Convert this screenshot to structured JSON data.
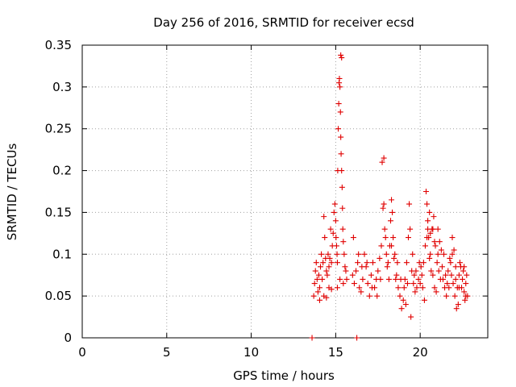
{
  "chart_data": {
    "type": "scatter",
    "title": "Day 256 of 2016, SRMTID for receiver ecsd",
    "xlabel": "GPS time / hours",
    "ylabel": "SRMTID / TECUs",
    "xlim": [
      0,
      24
    ],
    "ylim": [
      0,
      0.35
    ],
    "x_ticks": [
      0,
      5,
      10,
      15,
      20
    ],
    "x_tick_labels": [
      "0",
      "5",
      "10",
      "15",
      "20"
    ],
    "y_ticks": [
      0,
      0.05,
      0.1,
      0.15,
      0.2,
      0.25,
      0.3,
      0.35
    ],
    "y_tick_labels": [
      "0",
      "0.05",
      "0.1",
      "0.15",
      "0.2",
      "0.25",
      "0.3",
      "0.35"
    ],
    "grid": true,
    "marker": "plus",
    "color": "#e00000",
    "series": [
      {
        "name": "SRMTID",
        "points": [
          [
            13.6,
            0.0
          ],
          [
            16.25,
            0.0
          ],
          [
            13.7,
            0.05
          ],
          [
            13.75,
            0.065
          ],
          [
            13.8,
            0.08
          ],
          [
            13.85,
            0.09
          ],
          [
            13.9,
            0.07
          ],
          [
            13.95,
            0.055
          ],
          [
            14.0,
            0.075
          ],
          [
            14.05,
            0.06
          ],
          [
            14.1,
            0.085
          ],
          [
            14.15,
            0.1
          ],
          [
            14.2,
            0.07
          ],
          [
            14.25,
            0.09
          ],
          [
            14.3,
            0.145
          ],
          [
            14.35,
            0.12
          ],
          [
            14.4,
            0.095
          ],
          [
            14.45,
            0.08
          ],
          [
            14.5,
            0.075
          ],
          [
            14.55,
            0.1
          ],
          [
            14.6,
            0.085
          ],
          [
            14.65,
            0.095
          ],
          [
            14.7,
            0.13
          ],
          [
            14.75,
            0.09
          ],
          [
            14.8,
            0.11
          ],
          [
            14.85,
            0.125
          ],
          [
            14.9,
            0.15
          ],
          [
            14.95,
            0.16
          ],
          [
            15.0,
            0.14
          ],
          [
            15.02,
            0.12
          ],
          [
            15.05,
            0.11
          ],
          [
            15.08,
            0.1
          ],
          [
            15.1,
            0.09
          ],
          [
            15.12,
            0.2
          ],
          [
            15.15,
            0.25
          ],
          [
            15.18,
            0.28
          ],
          [
            15.2,
            0.305
          ],
          [
            15.22,
            0.31
          ],
          [
            15.25,
            0.3
          ],
          [
            15.28,
            0.27
          ],
          [
            15.3,
            0.24
          ],
          [
            15.32,
            0.22
          ],
          [
            15.35,
            0.2
          ],
          [
            15.38,
            0.18
          ],
          [
            15.4,
            0.155
          ],
          [
            15.42,
            0.13
          ],
          [
            15.45,
            0.115
          ],
          [
            15.5,
            0.1
          ],
          [
            15.55,
            0.085
          ],
          [
            15.6,
            0.08
          ],
          [
            15.65,
            0.07
          ],
          [
            15.3,
            0.338
          ],
          [
            15.35,
            0.335
          ],
          [
            14.05,
            0.045
          ],
          [
            14.3,
            0.05
          ],
          [
            14.45,
            0.048
          ],
          [
            14.6,
            0.06
          ],
          [
            14.75,
            0.058
          ],
          [
            15.1,
            0.06
          ],
          [
            15.25,
            0.07
          ],
          [
            15.45,
            0.065
          ],
          [
            16.0,
            0.075
          ],
          [
            16.1,
            0.065
          ],
          [
            16.2,
            0.08
          ],
          [
            16.3,
            0.09
          ],
          [
            16.4,
            0.06
          ],
          [
            16.5,
            0.055
          ],
          [
            16.6,
            0.07
          ],
          [
            16.7,
            0.1
          ],
          [
            16.8,
            0.085
          ],
          [
            16.9,
            0.065
          ],
          [
            17.0,
            0.05
          ],
          [
            17.1,
            0.075
          ],
          [
            17.2,
            0.09
          ],
          [
            17.3,
            0.06
          ],
          [
            17.4,
            0.07
          ],
          [
            17.5,
            0.08
          ],
          [
            17.6,
            0.095
          ],
          [
            17.7,
            0.11
          ],
          [
            17.75,
            0.21
          ],
          [
            17.8,
            0.155
          ],
          [
            17.85,
            0.16
          ],
          [
            17.9,
            0.13
          ],
          [
            17.95,
            0.12
          ],
          [
            18.0,
            0.1
          ],
          [
            18.05,
            0.085
          ],
          [
            18.1,
            0.09
          ],
          [
            18.2,
            0.11
          ],
          [
            18.25,
            0.14
          ],
          [
            18.3,
            0.165
          ],
          [
            18.35,
            0.15
          ],
          [
            18.4,
            0.12
          ],
          [
            18.5,
            0.1
          ],
          [
            18.6,
            0.075
          ],
          [
            18.7,
            0.06
          ],
          [
            18.8,
            0.05
          ],
          [
            18.9,
            0.035
          ],
          [
            19.0,
            0.045
          ],
          [
            19.1,
            0.07
          ],
          [
            19.2,
            0.09
          ],
          [
            19.3,
            0.12
          ],
          [
            19.35,
            0.16
          ],
          [
            19.4,
            0.13
          ],
          [
            19.45,
            0.025
          ],
          [
            19.5,
            0.08
          ],
          [
            19.6,
            0.065
          ],
          [
            19.7,
            0.055
          ],
          [
            19.8,
            0.06
          ],
          [
            19.9,
            0.07
          ],
          [
            20.0,
            0.065
          ],
          [
            20.1,
            0.075
          ],
          [
            20.2,
            0.09
          ],
          [
            20.3,
            0.11
          ],
          [
            20.35,
            0.175
          ],
          [
            20.4,
            0.16
          ],
          [
            20.45,
            0.14
          ],
          [
            20.5,
            0.12
          ],
          [
            20.6,
            0.1
          ],
          [
            20.7,
            0.13
          ],
          [
            20.8,
            0.145
          ],
          [
            20.9,
            0.11
          ],
          [
            21.0,
            0.09
          ],
          [
            21.1,
            0.08
          ],
          [
            21.2,
            0.07
          ],
          [
            21.3,
            0.085
          ],
          [
            21.4,
            0.1
          ],
          [
            21.5,
            0.075
          ],
          [
            21.6,
            0.065
          ],
          [
            21.7,
            0.06
          ],
          [
            21.8,
            0.09
          ],
          [
            21.9,
            0.12
          ],
          [
            22.0,
            0.105
          ],
          [
            22.1,
            0.07
          ],
          [
            22.2,
            0.06
          ],
          [
            22.3,
            0.075
          ],
          [
            22.4,
            0.085
          ],
          [
            22.5,
            0.07
          ],
          [
            22.6,
            0.055
          ],
          [
            22.7,
            0.065
          ],
          [
            22.75,
            0.075
          ],
          [
            22.8,
            0.05
          ],
          [
            16.05,
            0.12
          ],
          [
            16.35,
            0.1
          ],
          [
            16.55,
            0.085
          ],
          [
            16.85,
            0.09
          ],
          [
            17.15,
            0.06
          ],
          [
            17.45,
            0.05
          ],
          [
            17.65,
            0.07
          ],
          [
            18.15,
            0.07
          ],
          [
            18.45,
            0.095
          ],
          [
            18.65,
            0.09
          ],
          [
            18.85,
            0.07
          ],
          [
            19.05,
            0.06
          ],
          [
            19.25,
            0.065
          ],
          [
            19.55,
            0.1
          ],
          [
            19.75,
            0.08
          ],
          [
            19.95,
            0.09
          ],
          [
            20.15,
            0.06
          ],
          [
            20.25,
            0.045
          ],
          [
            20.55,
            0.095
          ],
          [
            20.65,
            0.08
          ],
          [
            20.75,
            0.075
          ],
          [
            20.85,
            0.06
          ],
          [
            20.95,
            0.055
          ],
          [
            21.05,
            0.1
          ],
          [
            21.15,
            0.115
          ],
          [
            21.25,
            0.105
          ],
          [
            21.35,
            0.07
          ],
          [
            21.45,
            0.06
          ],
          [
            21.55,
            0.05
          ],
          [
            21.65,
            0.08
          ],
          [
            21.75,
            0.095
          ],
          [
            21.85,
            0.075
          ],
          [
            21.95,
            0.065
          ],
          [
            22.05,
            0.05
          ],
          [
            22.15,
            0.035
          ],
          [
            22.25,
            0.04
          ],
          [
            22.35,
            0.09
          ],
          [
            22.45,
            0.06
          ],
          [
            22.55,
            0.08
          ],
          [
            22.65,
            0.045
          ],
          [
            17.85,
            0.215
          ],
          [
            18.3,
            0.11
          ],
          [
            18.55,
            0.07
          ],
          [
            19.15,
            0.04
          ],
          [
            19.65,
            0.075
          ],
          [
            20.05,
            0.085
          ],
          [
            20.4,
            0.12
          ],
          [
            20.45,
            0.13
          ],
          [
            20.55,
            0.15
          ],
          [
            20.6,
            0.125
          ],
          [
            20.75,
            0.13
          ],
          [
            20.85,
            0.115
          ],
          [
            21.05,
            0.13
          ],
          [
            21.9,
            0.1
          ],
          [
            22.1,
            0.085
          ],
          [
            22.3,
            0.06
          ],
          [
            22.6,
            0.085
          ],
          [
            22.7,
            0.05
          ]
        ]
      }
    ]
  }
}
